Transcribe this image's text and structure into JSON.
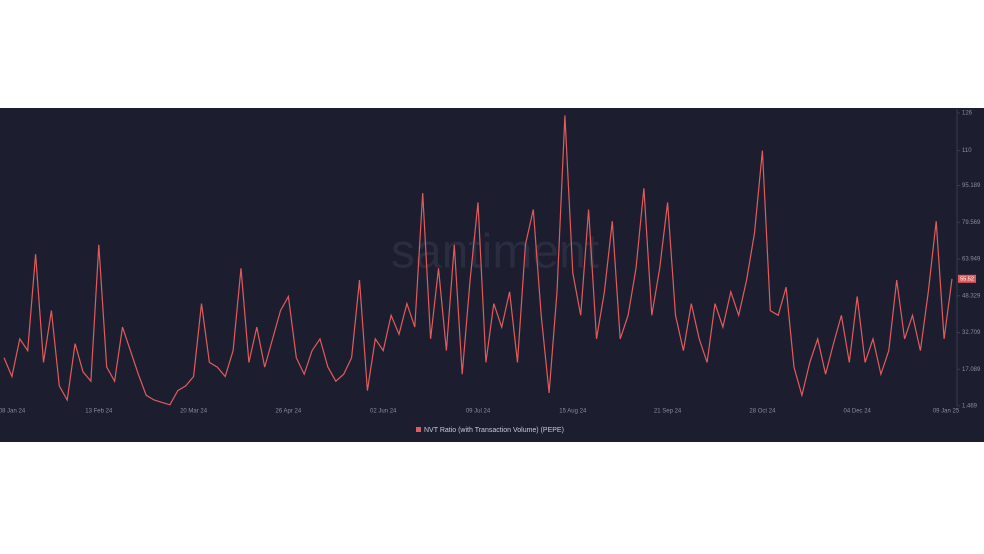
{
  "chart_data": {
    "type": "line",
    "watermark": "santiment",
    "categories": [
      "08 Jan 24",
      null,
      null,
      null,
      null,
      null,
      null,
      null,
      null,
      null,
      null,
      null,
      "13 Feb 24",
      null,
      null,
      null,
      null,
      null,
      null,
      null,
      null,
      null,
      null,
      null,
      "20 Mar 24",
      null,
      null,
      null,
      null,
      null,
      null,
      null,
      null,
      null,
      null,
      null,
      "26 Apr 24",
      null,
      null,
      null,
      null,
      null,
      null,
      null,
      null,
      null,
      null,
      null,
      "02 Jun 24",
      null,
      null,
      null,
      null,
      null,
      null,
      null,
      null,
      null,
      null,
      null,
      "09 Jul 24",
      null,
      null,
      null,
      null,
      null,
      null,
      null,
      null,
      null,
      null,
      null,
      "15 Aug 24",
      null,
      null,
      null,
      null,
      null,
      null,
      null,
      null,
      null,
      null,
      null,
      "21 Sep 24",
      null,
      null,
      null,
      null,
      null,
      null,
      null,
      null,
      null,
      null,
      null,
      "28 Oct 24",
      null,
      null,
      null,
      null,
      null,
      null,
      null,
      null,
      null,
      null,
      null,
      "04 Dec 24",
      null,
      null,
      null,
      null,
      null,
      null,
      null,
      null,
      null,
      null,
      null,
      "09 Jan 25"
    ],
    "series": [
      {
        "name": "NVT Ratio (with Transaction Volume) (PEPE)",
        "color": "#e05c5c",
        "axis": "y2",
        "values": [
          22,
          14,
          30,
          25,
          66,
          20,
          42,
          10,
          4,
          28,
          16,
          12,
          70,
          18,
          12,
          35,
          25,
          15,
          6,
          4,
          3,
          2,
          8,
          10,
          14,
          45,
          20,
          18,
          14,
          25,
          60,
          20,
          35,
          18,
          30,
          42,
          48,
          22,
          15,
          25,
          30,
          18,
          12,
          15,
          22,
          55,
          8,
          30,
          25,
          40,
          32,
          45,
          35,
          92,
          30,
          60,
          25,
          70,
          15,
          55,
          88,
          20,
          45,
          35,
          50,
          20,
          70,
          85,
          40,
          7,
          50,
          125,
          58,
          40,
          85,
          30,
          50,
          80,
          30,
          40,
          60,
          94,
          40,
          60,
          88,
          40,
          25,
          45,
          30,
          20,
          45,
          35,
          50,
          40,
          55,
          75,
          110,
          42,
          40,
          52,
          18,
          6,
          20,
          30,
          15,
          28,
          40,
          20,
          48,
          20,
          30,
          15,
          25,
          55,
          30,
          40,
          25,
          50,
          80,
          30,
          55.52
        ]
      }
    ],
    "current_value": 55.52,
    "y2lim": [
      1.469,
      126
    ],
    "y2ticks": [
      1.469,
      17.089,
      32.709,
      48.329,
      63.949,
      79.569,
      95.189,
      110,
      126
    ]
  }
}
